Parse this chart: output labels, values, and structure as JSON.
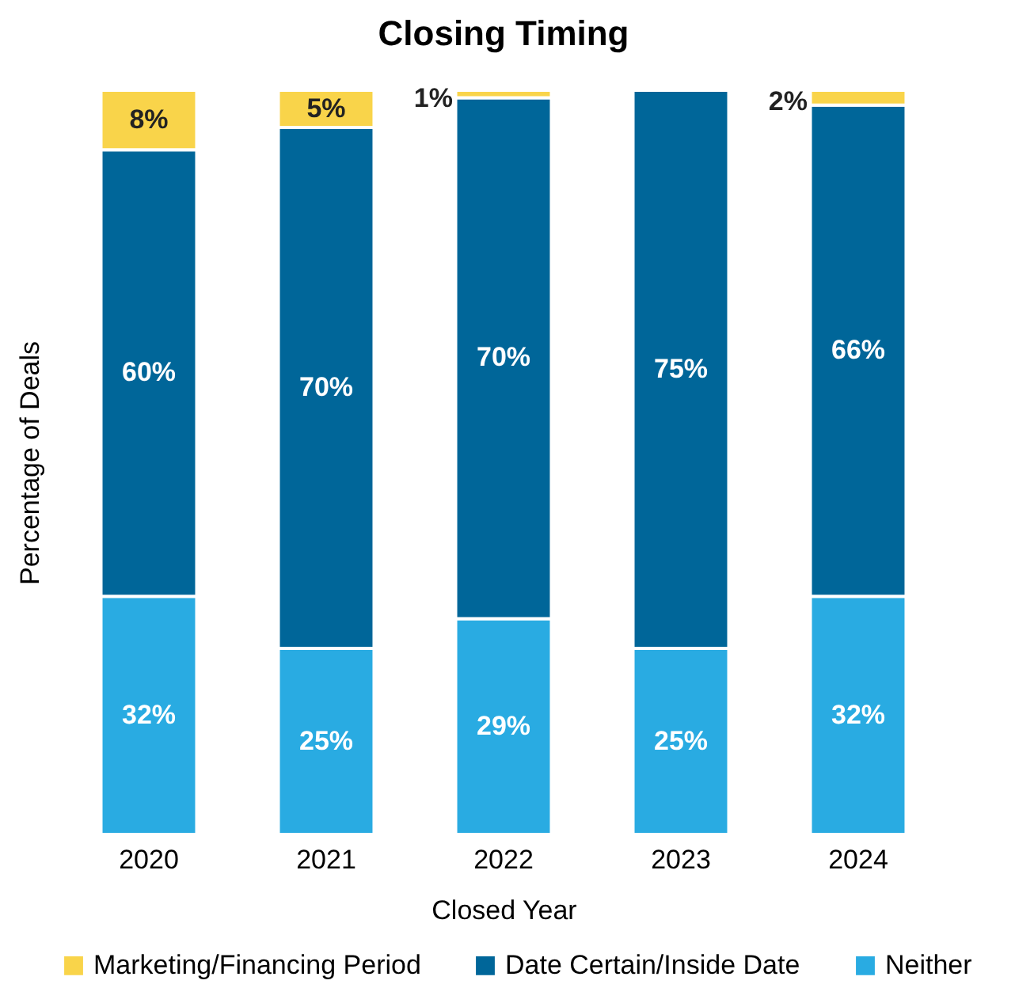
{
  "chart_data": {
    "type": "bar",
    "title": "Closing Timing",
    "xlabel": "Closed Year",
    "ylabel": "Percentage of Deals",
    "stacked": true,
    "legend": "bottom",
    "grid": false,
    "categories": [
      "2020",
      "2021",
      "2022",
      "2023",
      "2024"
    ],
    "series": [
      {
        "name": "Neither",
        "color": "#29abe2",
        "values": [
          32,
          25,
          29,
          25,
          32
        ],
        "value_labels": [
          "32%",
          "25%",
          "29%",
          "25%",
          "32%"
        ]
      },
      {
        "name": "Date Certain/Inside Date",
        "color": "#006699",
        "values": [
          60,
          70,
          70,
          75,
          66
        ],
        "value_labels": [
          "60%",
          "70%",
          "70%",
          "75%",
          "66%"
        ]
      },
      {
        "name": "Marketing/Financing Period",
        "color": "#f9d44a",
        "values": [
          8,
          5,
          1,
          0,
          2
        ],
        "value_labels": [
          "8%",
          "5%",
          "1%",
          null,
          "2%"
        ]
      }
    ]
  }
}
